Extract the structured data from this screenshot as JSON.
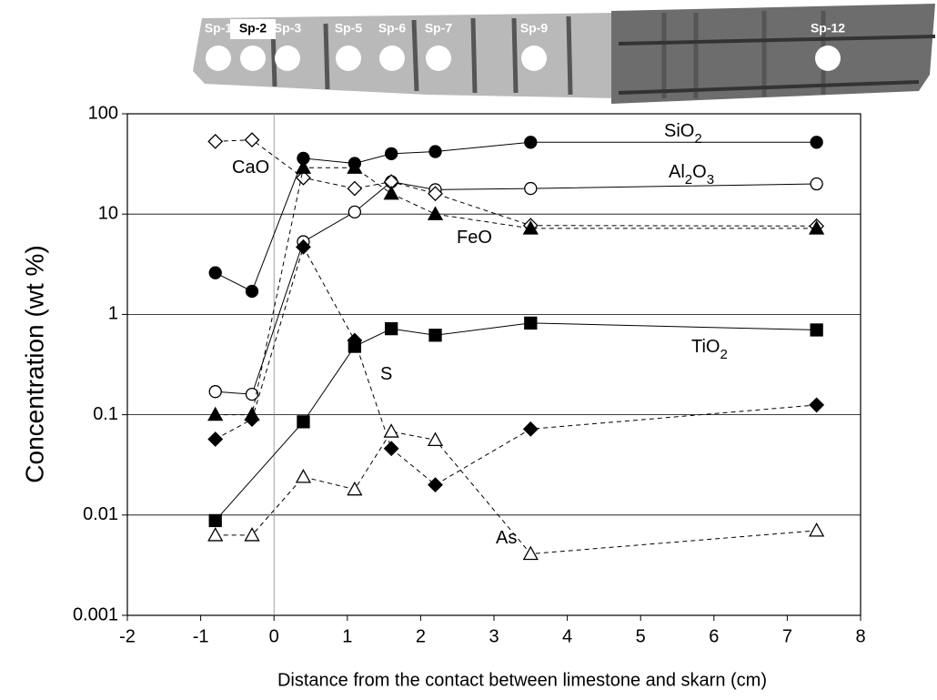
{
  "chart_data": {
    "type": "line",
    "specimens": [
      "Sp-1",
      "Sp-2",
      "Sp-3",
      "Sp-5",
      "Sp-6",
      "Sp-7",
      "Sp-9",
      "Sp-12"
    ],
    "xlabel": "Distance from the contact between limestone and skarn (cm)",
    "ylabel": "Concentration (wt %)",
    "xlim": [
      -2,
      8
    ],
    "xticks": [
      -2,
      -1,
      0,
      1,
      2,
      3,
      4,
      5,
      6,
      7,
      8
    ],
    "ylim": [
      0.001,
      100
    ],
    "yticks": [
      0.001,
      0.01,
      0.1,
      1,
      10,
      100
    ],
    "log_y": true,
    "grid": true,
    "reference_x": 0,
    "x": [
      -0.8,
      -0.3,
      0.4,
      1.1,
      1.6,
      2.2,
      3.5,
      7.4
    ],
    "series": [
      {
        "name": "SiO2",
        "color": "#000000",
        "marker": "circle",
        "filled": true,
        "dashed": false,
        "values": [
          2.6,
          1.7,
          36,
          32,
          40,
          42,
          52,
          52
        ]
      },
      {
        "name": "Al2O3",
        "color": "#000000",
        "marker": "circle",
        "filled": false,
        "dashed": false,
        "values": [
          0.17,
          0.16,
          5.3,
          10.5,
          21,
          17.5,
          18,
          20
        ]
      },
      {
        "name": "CaO",
        "color": "#000000",
        "marker": "diamond",
        "filled": false,
        "dashed": true,
        "values": [
          53,
          55,
          23,
          18,
          21,
          16,
          7.7,
          7.6
        ]
      },
      {
        "name": "FeO",
        "color": "#000000",
        "marker": "triangle",
        "filled": true,
        "dashed": true,
        "values": [
          0.1,
          0.1,
          29,
          29,
          16,
          10,
          7.2,
          7.2
        ]
      },
      {
        "name": "TiO2",
        "color": "#000000",
        "marker": "square",
        "filled": true,
        "dashed": false,
        "x": [
          -0.8,
          0.4,
          1.1,
          1.6,
          2.2,
          3.5,
          7.4
        ],
        "values": [
          0.0088,
          0.085,
          0.48,
          0.72,
          0.62,
          0.82,
          0.7
        ]
      },
      {
        "name": "S",
        "color": "#000000",
        "marker": "diamond",
        "filled": true,
        "dashed": true,
        "values": [
          0.057,
          0.09,
          4.7,
          0.55,
          0.046,
          0.02,
          0.072,
          0.125
        ]
      },
      {
        "name": "As",
        "color": "#000000",
        "marker": "triangle",
        "filled": false,
        "dashed": true,
        "values": [
          0.0063,
          0.0063,
          0.024,
          0.018,
          0.068,
          0.056,
          0.0041,
          0.007
        ]
      }
    ]
  }
}
